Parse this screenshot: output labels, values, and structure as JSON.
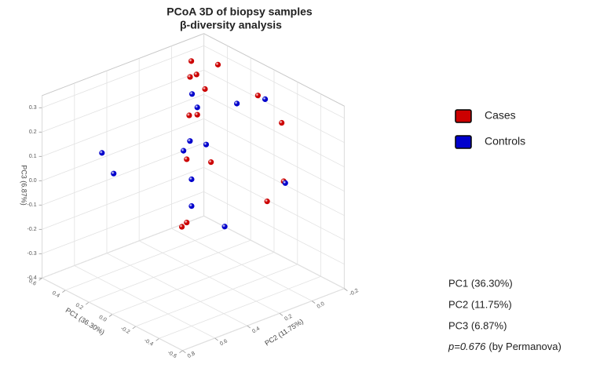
{
  "chart_data": {
    "type": "scatter3d",
    "title": [
      "PCoA 3D of biopsy samples",
      "β-diversity analysis"
    ],
    "xlabel": "PC1 (36.30%)",
    "ylabel": "PC2 (11.75%)",
    "zlabel": "PC3 (6.87%)",
    "xlim": [
      -0.6,
      0.6
    ],
    "ylim": [
      -0.2,
      0.8
    ],
    "zlim": [
      -0.4,
      0.35
    ],
    "xticks": [
      0.6,
      0.4,
      0.2,
      {
        "value": 0,
        "label": "0.0"
      },
      -0.2,
      -0.4,
      -0.6
    ],
    "yticks": [
      -0.2,
      {
        "value": 0,
        "label": "0.0"
      },
      0.2,
      0.4,
      0.6,
      0.8
    ],
    "zticks": [
      0.3,
      0.2,
      0.1,
      {
        "value": 0,
        "label": "0.0"
      },
      -0.1,
      -0.2,
      -0.3,
      -0.4
    ],
    "grid": true,
    "legend": "right",
    "series": [
      {
        "name": "Cases",
        "color": "#cc0000",
        "x": [
          0.5,
          0.4,
          0.4,
          0.3,
          0.3,
          0,
          0.2,
          0.2,
          -0.3,
          0,
          0,
          -0.4,
          -0.3,
          0,
          0
        ],
        "y": [
          -0.05,
          -0.01,
          0.03,
          -0.07,
          0.01,
          -0.1,
          0.18,
          0.13,
          -0.03,
          0.34,
          0.19,
          0.03,
          0.06,
          0.34,
          0.37
        ],
        "z": [
          0.3,
          0.28,
          0.28,
          0.33,
          0.25,
          0.27,
          0.21,
          0.2,
          0.25,
          0.12,
          0.07,
          0.05,
          -0.05,
          -0.14,
          -0.15
        ]
      },
      {
        "name": "Controls",
        "color": "#0000cc",
        "x": [
          0.3,
          0.2,
          0,
          -0.2,
          0,
          0,
          0,
          0.6,
          0.5,
          0,
          -0.4,
          0,
          -0.2
        ],
        "y": [
          0.09,
          0.13,
          0.03,
          0,
          0.32,
          0.22,
          0.36,
          0.43,
          0.43,
          0.31,
          0.02,
          0.31,
          0.25
        ],
        "z": [
          0.25,
          0.23,
          0.27,
          0.33,
          0.19,
          0.15,
          0.16,
          0.02,
          -0.04,
          0.03,
          0.04,
          -0.08,
          -0.13
        ]
      }
    ]
  },
  "side_notes": {
    "lines": [
      "PC1 (36.30%)",
      "PC2 (11.75%)",
      "PC3 (6.87%)"
    ],
    "p_value": "p=0.676",
    "p_note": "(by Permanova)"
  }
}
